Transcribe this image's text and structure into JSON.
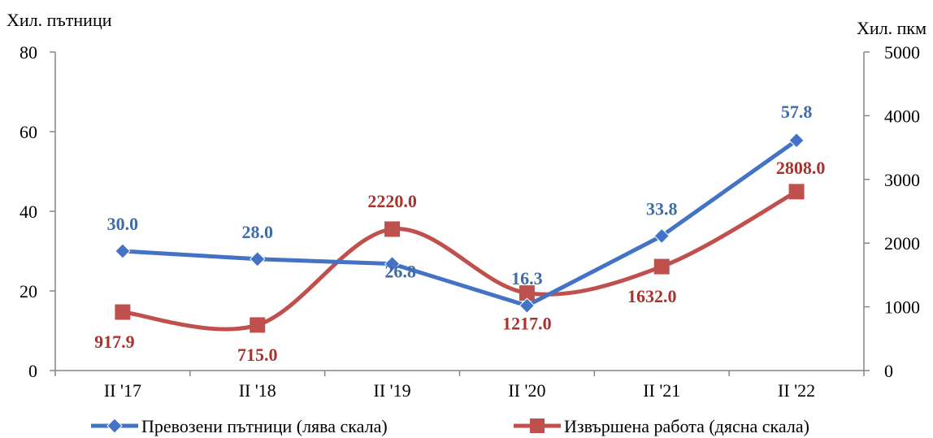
{
  "chart_data": {
    "type": "line",
    "categories": [
      "II '17",
      "II '18",
      "II '19",
      "II '20",
      "II '21",
      "II '22"
    ],
    "y_left_label": "Хил. пътници",
    "y_right_label": "Хил. пкм",
    "y_left_ticks": [
      "0",
      "20",
      "40",
      "60",
      "80"
    ],
    "y_right_ticks": [
      "0",
      "1000",
      "2000",
      "3000",
      "4000",
      "5000"
    ],
    "ylim_left": [
      0,
      80
    ],
    "ylim_right": [
      0,
      5000
    ],
    "grid": false,
    "legend_position": "bottom",
    "series": [
      {
        "name": "Превозени пътници (лява скала)",
        "axis": "left",
        "color": "#4472C4",
        "label_color": "#3F6BA9",
        "marker": "diamond",
        "smooth": false,
        "values": [
          30.0,
          28.0,
          26.8,
          16.3,
          33.8,
          57.8
        ],
        "labels": [
          "30.0",
          "28.0",
          "26.8",
          "16.3",
          "33.8",
          "57.8"
        ]
      },
      {
        "name": "Извършена работа (дясна скала)",
        "axis": "right",
        "color": "#C0504D",
        "label_color": "#A9322D",
        "marker": "square",
        "smooth": true,
        "values": [
          917.9,
          715.0,
          2220.0,
          1217.0,
          1632.0,
          2808.0
        ],
        "labels": [
          "917.9",
          "715.0",
          "2220.0",
          "1217.0",
          "1632.0",
          "2808.0"
        ]
      }
    ]
  }
}
